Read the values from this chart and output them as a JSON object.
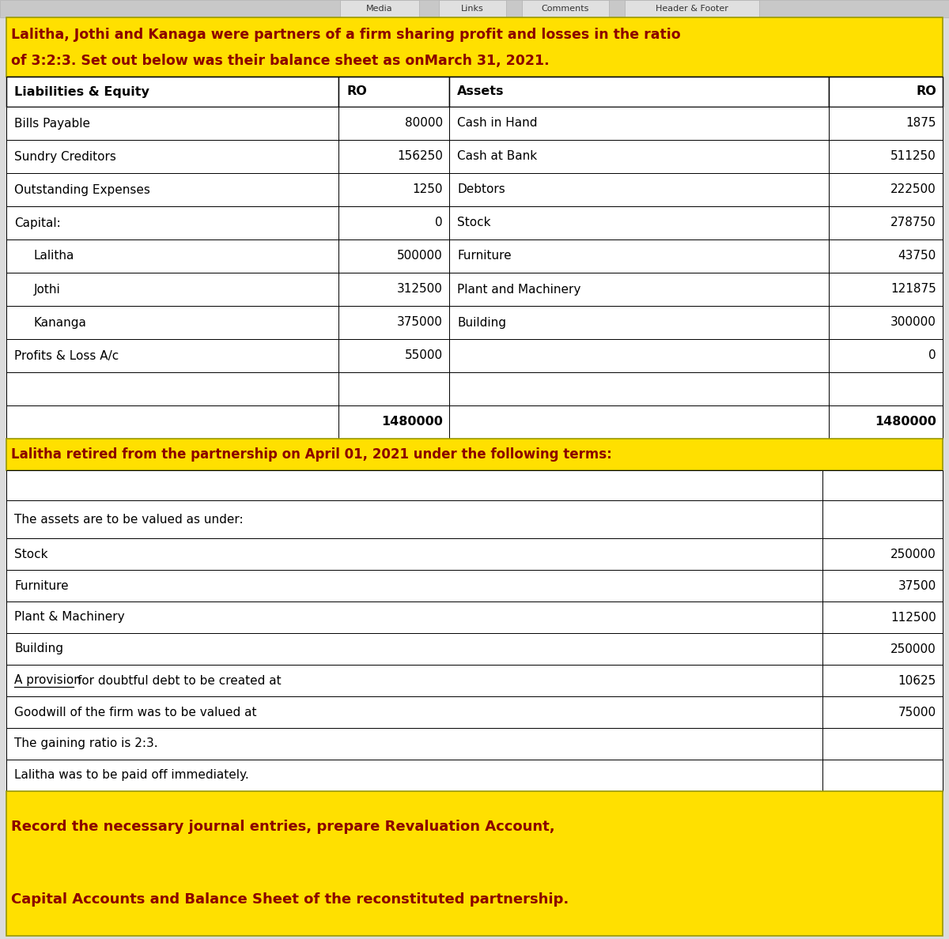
{
  "title_line1": "Lalitha, Jothi and Kanaga were partners of a firm sharing profit and losses in the ratio",
  "title_line2": "of 3:2:3. Set out below was their balance sheet as onMarch 31, 2021.",
  "header_tabs": [
    "Media",
    "Links",
    "Comments",
    "Header & Footer"
  ],
  "liabilities": [
    {
      "name": "Bills Payable",
      "value": "80000"
    },
    {
      "name": "Sundry Creditors",
      "value": "156250"
    },
    {
      "name": "Outstanding Expenses",
      "value": "1250"
    },
    {
      "name": "Capital:",
      "value": "0"
    },
    {
      "name": "Lalitha",
      "value": "500000",
      "indent": true
    },
    {
      "name": "Jothi",
      "value": "312500",
      "indent": true
    },
    {
      "name": "Kananga",
      "value": "375000",
      "indent": true
    },
    {
      "name": "Profits & Loss A/c",
      "value": "55000"
    },
    {
      "name": "",
      "value": ""
    },
    {
      "name": "",
      "value": "1480000",
      "bold": true
    }
  ],
  "assets": [
    {
      "name": "Cash in Hand",
      "value": "1875"
    },
    {
      "name": "Cash at Bank",
      "value": "511250"
    },
    {
      "name": "Debtors",
      "value": "222500"
    },
    {
      "name": "Stock",
      "value": "278750"
    },
    {
      "name": "Furniture",
      "value": "43750"
    },
    {
      "name": "Plant and Machinery",
      "value": "121875"
    },
    {
      "name": "Building",
      "value": "300000"
    },
    {
      "name": "",
      "value": "0"
    },
    {
      "name": "",
      "value": ""
    },
    {
      "name": "",
      "value": "1480000",
      "bold": true
    }
  ],
  "retired_line": "Lalitha retired from the partnership on April 01, 2021 under the following terms:",
  "terms_header": "The assets are to be valued as under:",
  "terms": [
    {
      "name": "Stock",
      "value": "250000"
    },
    {
      "name": "Furniture",
      "value": "37500"
    },
    {
      "name": "Plant & Machinery",
      "value": "112500"
    },
    {
      "name": "Building",
      "value": "250000"
    },
    {
      "name": "A provision for doubtful debt to be created at",
      "value": "10625",
      "underline_word": "A provision"
    },
    {
      "name": "Goodwill of the firm was to be valued at",
      "value": "75000"
    },
    {
      "name": "The gaining ratio is 2:3.",
      "value": ""
    },
    {
      "name": "Lalitha was to be paid off immediately.",
      "value": ""
    }
  ],
  "footer_line1": "Record the necessary journal entries, prepare Revaluation Account,",
  "footer_line2": "Capital Accounts and Balance Sheet of the reconstituted partnership.",
  "yellow": "#FFE000",
  "dark_red": "#8B0000",
  "white": "#FFFFFF",
  "light_gray": "#DCDCDC",
  "mid_gray": "#B0B0B0",
  "black": "#000000",
  "tab_bg": "#E0E0E0",
  "nav_bg": "#C8C8C8",
  "row_alt": "#F5F5F5"
}
